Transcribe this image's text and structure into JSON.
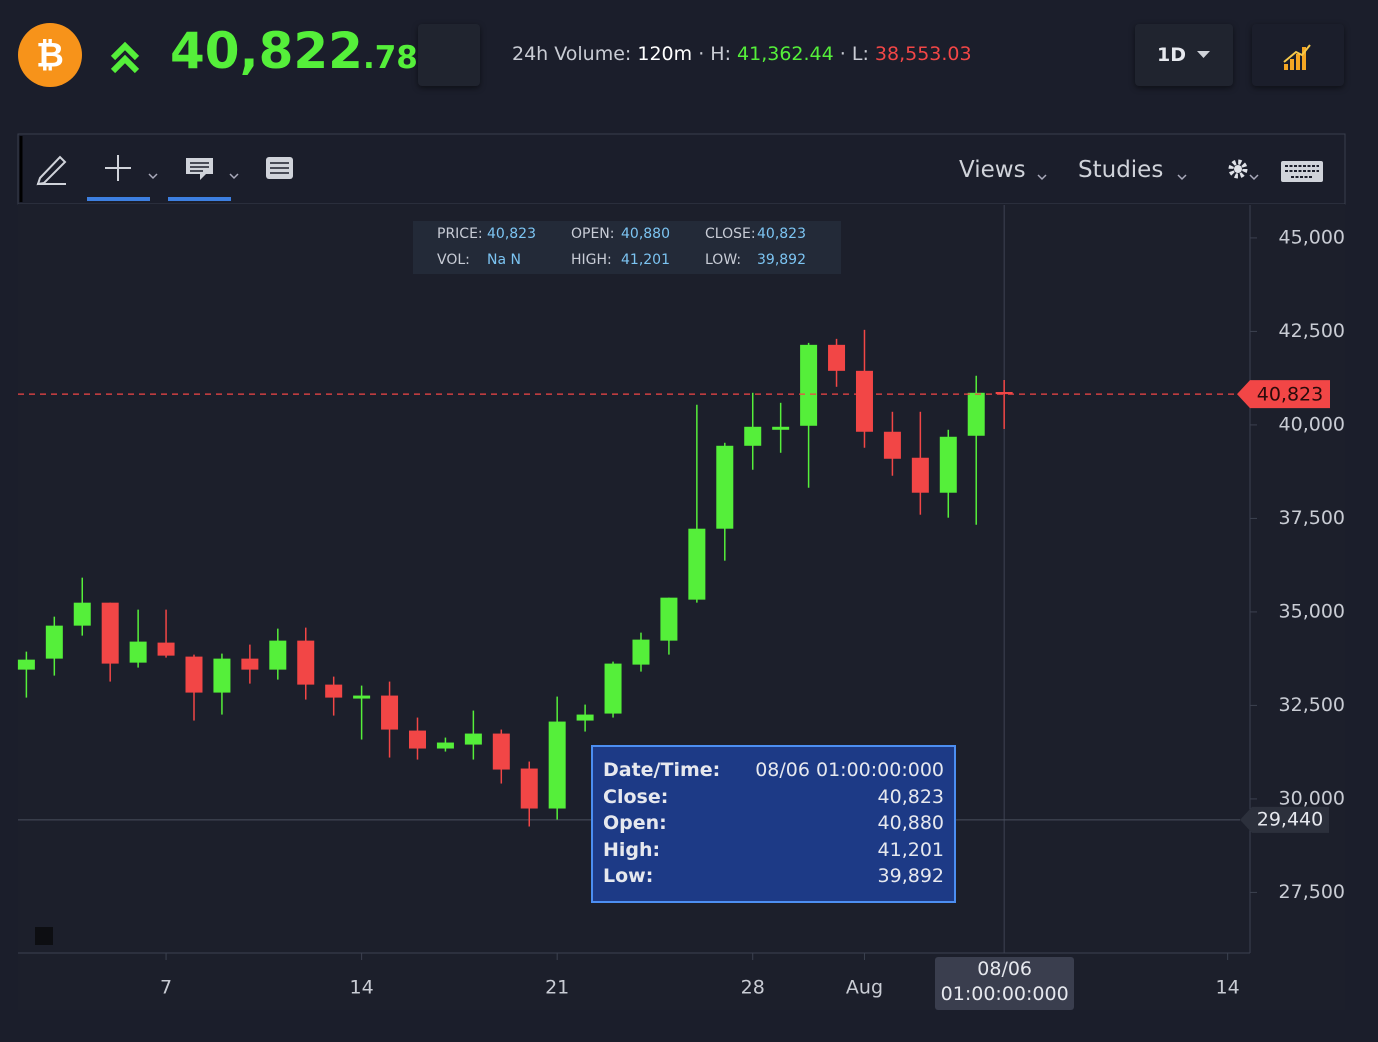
{
  "header": {
    "logo_symbol": "₿",
    "price_main": "40,822",
    "price_decimals": ".78",
    "volume_label": "24h Volume:",
    "volume": "120m",
    "high_label": "· H:",
    "high": "41,362.44",
    "low_label": "· L:",
    "low": "38,553.03",
    "interval": "1D"
  },
  "toolbar": {
    "views": "Views",
    "studies": "Studies"
  },
  "info_box": {
    "rows": [
      [
        [
          "PRICE:",
          "40,823"
        ],
        [
          "OPEN:",
          "40,880"
        ],
        [
          "CLOSE:",
          "40,823"
        ]
      ],
      [
        [
          "VOL:",
          "Na N"
        ],
        [
          "HIGH:",
          "41,201"
        ],
        [
          "LOW:",
          "39,892"
        ]
      ]
    ]
  },
  "tooltip": {
    "rows": [
      [
        "Date/Time:",
        "08/06 01:00:00:000"
      ],
      [
        "Close:",
        "40,823"
      ],
      [
        "Open:",
        "40,880"
      ],
      [
        "High:",
        "41,201"
      ],
      [
        "Low:",
        "39,892"
      ]
    ]
  },
  "chart_data": {
    "type": "candlestick",
    "x": [
      2,
      3,
      4,
      5,
      6,
      7,
      8,
      9,
      10,
      11,
      12,
      13,
      14,
      15,
      16,
      17,
      18,
      19,
      20,
      21,
      22,
      23,
      24,
      25,
      26,
      27,
      28,
      29,
      30,
      31,
      32,
      33,
      34,
      35,
      36,
      37
    ],
    "open": [
      33457,
      33751,
      34633,
      35247,
      33644,
      34179,
      33805,
      32843,
      33751,
      33457,
      34232,
      33056,
      32683,
      32763,
      31827,
      31347,
      31453,
      31747,
      30812,
      29743,
      32095,
      32282,
      33591,
      34232,
      35328,
      37225,
      39442,
      39870,
      39977,
      42141,
      41446,
      39817,
      39122,
      38187,
      39710,
      40880
    ],
    "high": [
      33938,
      34873,
      35916,
      35247,
      35061,
      35061,
      33858,
      33885,
      34126,
      34553,
      34580,
      33270,
      33030,
      33137,
      32175,
      31640,
      32362,
      31854,
      30999,
      32736,
      32522,
      33671,
      34446,
      35381,
      40538,
      39522,
      40859,
      40591,
      42194,
      42301,
      42542,
      40351,
      40351,
      39870,
      41313,
      41201
    ],
    "low": [
      32709,
      33297,
      34366,
      33137,
      33511,
      33778,
      32095,
      32255,
      33083,
      33190,
      32656,
      32228,
      31587,
      31106,
      31052,
      31266,
      31052,
      30411,
      29262,
      29449,
      31801,
      32175,
      33404,
      33858,
      35247,
      36370,
      38801,
      39255,
      38320,
      41019,
      39389,
      38641,
      37599,
      37519,
      37332,
      39892
    ],
    "close": [
      33724,
      34633,
      35247,
      33618,
      34206,
      33831,
      32843,
      33751,
      33457,
      34232,
      33056,
      32709,
      32763,
      31854,
      31347,
      31507,
      31747,
      30785,
      29743,
      32068,
      32255,
      33618,
      34259,
      35381,
      37225,
      39442,
      39950,
      39950,
      42141,
      41446,
      39817,
      39095,
      38187,
      39683,
      40859,
      40823
    ],
    "up_color": "#55ef3a",
    "down_color": "#f24646",
    "xlim": [
      1.7,
      45.8
    ],
    "xticks": [
      7,
      14,
      21,
      28,
      {
        "value": 32,
        "label": "Aug"
      },
      {
        "value": 45,
        "label": "14"
      }
    ],
    "ylim": [
      25880,
      45880
    ],
    "yticks": [
      {
        "value": 27500,
        "label": "27,500"
      },
      {
        "value": 30000,
        "label": "30,000"
      },
      {
        "value": 32500,
        "label": "32,500"
      },
      {
        "value": 35000,
        "label": "35,000"
      },
      {
        "value": 37500,
        "label": "37,500"
      },
      {
        "value": 40000,
        "label": "40,000"
      },
      {
        "value": 42500,
        "label": "42,500"
      },
      {
        "value": 45000,
        "label": "45,000"
      }
    ],
    "price_line": {
      "value": 40823,
      "label": "40,823"
    },
    "crosshair": {
      "x": {
        "value": 37,
        "label": "08/06 01:00:00:000"
      },
      "y": {
        "value": 29440,
        "label": "29,440"
      }
    }
  }
}
